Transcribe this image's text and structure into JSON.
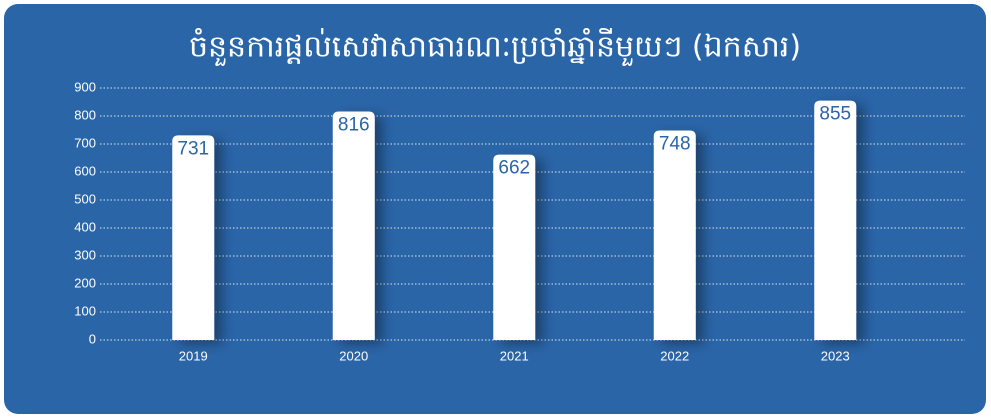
{
  "chart_data": {
    "type": "bar",
    "title": "ចំនួនការផ្តល់សេវាសាធារណៈប្រចាំឆ្នាំនីមួយៗ (ឯកសារ)",
    "categories": [
      "2019",
      "2020",
      "2021",
      "2022",
      "2023"
    ],
    "values": [
      731,
      816,
      662,
      748,
      855
    ],
    "color": "#ffffff",
    "ylim": [
      0,
      900
    ],
    "yticks": [
      0,
      100,
      200,
      300,
      400,
      500,
      600,
      700,
      800,
      900
    ],
    "grid": true
  }
}
